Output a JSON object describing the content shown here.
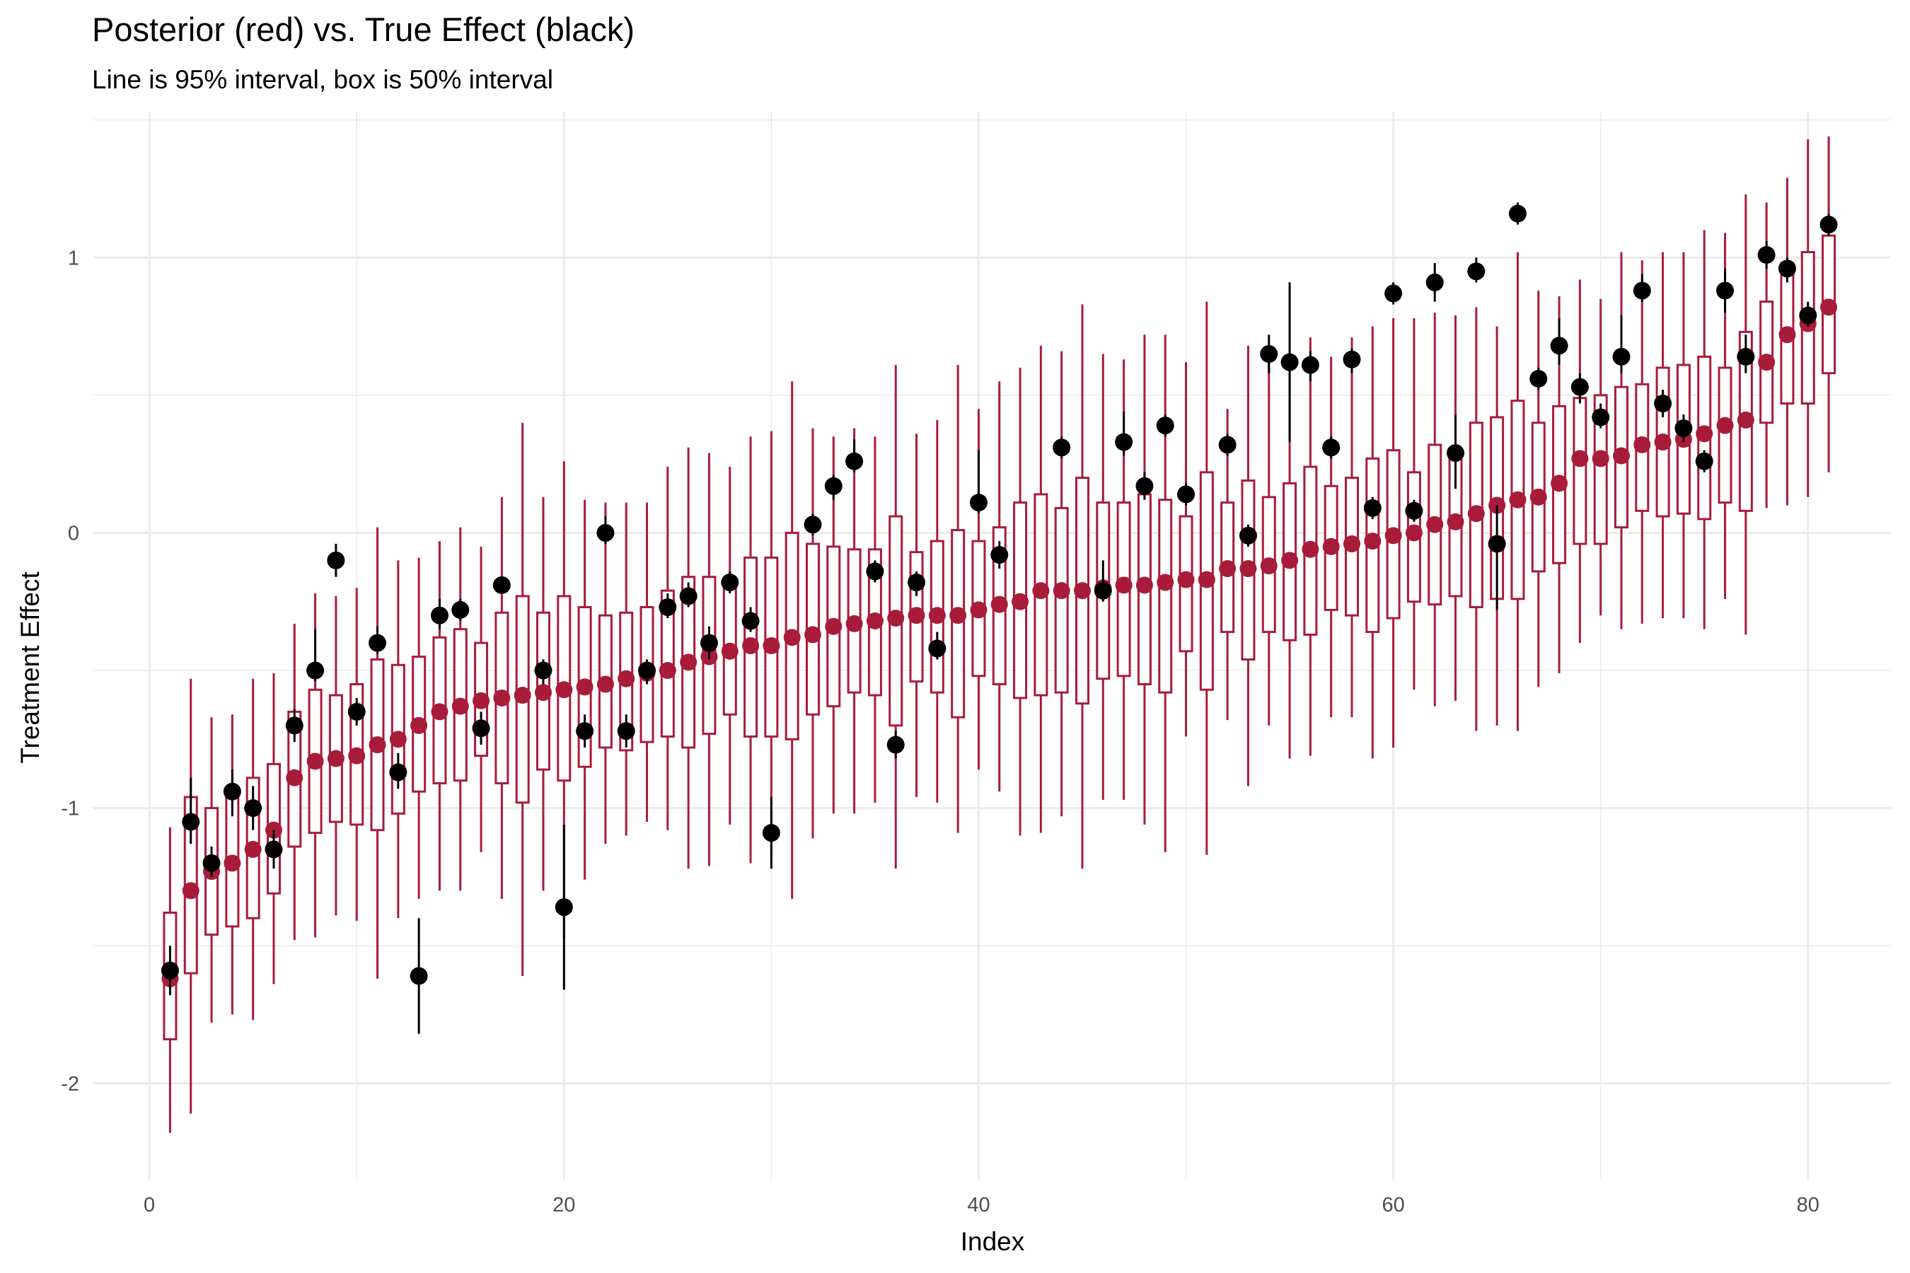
{
  "chart_data": {
    "type": "scatter",
    "title": "Posterior (red) vs. True Effect (black)",
    "subtitle": "Line is 95% interval, box is 50% interval",
    "xlabel": "Index",
    "ylabel": "Treatment Effect",
    "xlim": [
      -2.7,
      84
    ],
    "ylim": [
      -2.35,
      1.53
    ],
    "x_ticks": [
      0,
      20,
      40,
      60,
      80
    ],
    "y_ticks": [
      -2,
      -1,
      0,
      1
    ],
    "grid": true,
    "colors": {
      "posterior": "#A81C3A",
      "true_effect": "#000000",
      "grid": "#EBEBEB"
    },
    "series": [
      {
        "name": "Posterior",
        "index": [
          1,
          2,
          3,
          4,
          5,
          6,
          7,
          8,
          9,
          10,
          11,
          12,
          13,
          14,
          15,
          16,
          17,
          18,
          19,
          20,
          21,
          22,
          23,
          24,
          25,
          26,
          27,
          28,
          29,
          30,
          31,
          32,
          33,
          34,
          35,
          36,
          37,
          38,
          39,
          40,
          41,
          42,
          43,
          44,
          45,
          46,
          47,
          48,
          49,
          50,
          51,
          52,
          53,
          54,
          55,
          56,
          57,
          58,
          59,
          60,
          61,
          62,
          63,
          64,
          65,
          66,
          67,
          68,
          69,
          70,
          71,
          72,
          73,
          74,
          75,
          76,
          77,
          78,
          79,
          80,
          81
        ],
        "median": [
          -1.62,
          -1.3,
          -1.23,
          -1.2,
          -1.15,
          -1.08,
          -0.89,
          -0.83,
          -0.82,
          -0.81,
          -0.77,
          -0.75,
          -0.7,
          -0.65,
          -0.63,
          -0.61,
          -0.6,
          -0.59,
          -0.58,
          -0.57,
          -0.56,
          -0.55,
          -0.53,
          -0.51,
          -0.5,
          -0.47,
          -0.45,
          -0.43,
          -0.41,
          -0.41,
          -0.38,
          -0.37,
          -0.34,
          -0.33,
          -0.32,
          -0.31,
          -0.3,
          -0.3,
          -0.3,
          -0.28,
          -0.26,
          -0.25,
          -0.21,
          -0.21,
          -0.21,
          -0.2,
          -0.19,
          -0.19,
          -0.18,
          -0.17,
          -0.17,
          -0.13,
          -0.13,
          -0.12,
          -0.1,
          -0.06,
          -0.05,
          -0.04,
          -0.03,
          -0.01,
          0.0,
          0.03,
          0.04,
          0.07,
          0.1,
          0.12,
          0.13,
          0.18,
          0.27,
          0.27,
          0.28,
          0.32,
          0.33,
          0.34,
          0.36,
          0.39,
          0.41,
          0.62,
          0.72,
          0.76,
          0.82
        ],
        "q25": [
          -1.84,
          -1.6,
          -1.46,
          -1.43,
          -1.4,
          -1.31,
          -1.14,
          -1.09,
          -1.05,
          -1.06,
          -1.08,
          -1.02,
          -0.94,
          -0.91,
          -0.9,
          -0.81,
          -0.91,
          -0.98,
          -0.86,
          -0.9,
          -0.85,
          -0.78,
          -0.79,
          -0.76,
          -0.74,
          -0.78,
          -0.73,
          -0.66,
          -0.74,
          -0.74,
          -0.75,
          -0.66,
          -0.63,
          -0.58,
          -0.59,
          -0.7,
          -0.54,
          -0.58,
          -0.67,
          -0.52,
          -0.55,
          -0.6,
          -0.59,
          -0.58,
          -0.62,
          -0.53,
          -0.52,
          -0.55,
          -0.58,
          -0.43,
          -0.57,
          -0.36,
          -0.46,
          -0.36,
          -0.39,
          -0.37,
          -0.28,
          -0.3,
          -0.36,
          -0.31,
          -0.25,
          -0.26,
          -0.23,
          -0.27,
          -0.24,
          -0.24,
          -0.14,
          -0.11,
          -0.04,
          -0.04,
          0.02,
          0.08,
          0.06,
          0.07,
          0.05,
          0.11,
          0.08,
          0.4,
          0.47,
          0.47,
          0.58
        ],
        "q75": [
          -1.38,
          -0.96,
          -1.0,
          -0.96,
          -0.89,
          -0.84,
          -0.65,
          -0.57,
          -0.59,
          -0.55,
          -0.46,
          -0.48,
          -0.45,
          -0.38,
          -0.35,
          -0.4,
          -0.29,
          -0.23,
          -0.29,
          -0.23,
          -0.27,
          -0.3,
          -0.29,
          -0.27,
          -0.21,
          -0.16,
          -0.16,
          -0.2,
          -0.09,
          -0.09,
          0.0,
          -0.04,
          -0.05,
          -0.06,
          -0.06,
          0.06,
          -0.07,
          -0.03,
          0.01,
          -0.03,
          0.02,
          0.11,
          0.14,
          0.09,
          0.2,
          0.11,
          0.11,
          0.14,
          0.12,
          0.06,
          0.22,
          0.11,
          0.19,
          0.13,
          0.18,
          0.24,
          0.17,
          0.2,
          0.27,
          0.3,
          0.22,
          0.32,
          0.3,
          0.4,
          0.42,
          0.48,
          0.4,
          0.46,
          0.49,
          0.5,
          0.53,
          0.54,
          0.6,
          0.61,
          0.64,
          0.6,
          0.73,
          0.84,
          0.98,
          1.02,
          1.08
        ],
        "lo95": [
          -2.18,
          -2.11,
          -1.78,
          -1.75,
          -1.77,
          -1.64,
          -1.48,
          -1.47,
          -1.39,
          -1.41,
          -1.62,
          -1.4,
          -1.33,
          -1.3,
          -1.3,
          -1.16,
          -1.33,
          -1.61,
          -1.3,
          -1.47,
          -1.26,
          -1.13,
          -1.1,
          -1.05,
          -1.08,
          -1.22,
          -1.21,
          -1.06,
          -1.2,
          -1.17,
          -1.33,
          -1.11,
          -1.02,
          -1.02,
          -0.98,
          -1.22,
          -0.96,
          -0.98,
          -1.09,
          -0.86,
          -0.94,
          -1.1,
          -1.09,
          -1.03,
          -1.22,
          -0.97,
          -0.97,
          -1.06,
          -1.16,
          -0.74,
          -1.17,
          -0.68,
          -0.92,
          -0.7,
          -0.82,
          -0.81,
          -0.67,
          -0.67,
          -0.82,
          -0.78,
          -0.57,
          -0.63,
          -0.61,
          -0.72,
          -0.7,
          -0.72,
          -0.56,
          -0.51,
          -0.4,
          -0.3,
          -0.35,
          -0.33,
          -0.31,
          -0.31,
          -0.35,
          -0.24,
          -0.37,
          0.09,
          0.1,
          0.13,
          0.22
        ],
        "hi95": [
          -1.07,
          -0.53,
          -0.67,
          -0.66,
          -0.53,
          -0.51,
          -0.33,
          -0.22,
          -0.23,
          -0.2,
          0.02,
          -0.1,
          -0.09,
          -0.03,
          0.02,
          -0.05,
          0.13,
          0.4,
          0.13,
          0.26,
          0.12,
          0.11,
          0.11,
          0.11,
          0.24,
          0.31,
          0.29,
          0.24,
          0.35,
          0.37,
          0.55,
          0.38,
          0.35,
          0.38,
          0.35,
          0.61,
          0.36,
          0.41,
          0.61,
          0.45,
          0.55,
          0.6,
          0.68,
          0.66,
          0.83,
          0.65,
          0.63,
          0.72,
          0.72,
          0.62,
          0.84,
          0.45,
          0.68,
          0.62,
          0.66,
          0.71,
          0.64,
          0.71,
          0.75,
          0.78,
          0.78,
          0.8,
          0.79,
          0.82,
          0.75,
          1.02,
          0.88,
          0.86,
          0.92,
          0.85,
          1.02,
          0.99,
          1.02,
          1.02,
          1.1,
          1.09,
          1.23,
          1.2,
          1.29,
          1.43,
          1.44
        ]
      },
      {
        "name": "True Effect",
        "index": [
          1,
          2,
          3,
          4,
          5,
          6,
          7,
          8,
          9,
          10,
          11,
          12,
          13,
          14,
          15,
          16,
          17,
          18,
          19,
          20,
          21,
          22,
          23,
          24,
          25,
          26,
          27,
          28,
          29,
          30,
          31,
          32,
          33,
          34,
          35,
          36,
          37,
          38,
          39,
          40,
          41,
          42,
          43,
          44,
          45,
          46,
          47,
          48,
          49,
          50,
          51,
          52,
          53,
          54,
          55,
          56,
          57,
          58,
          59,
          60,
          61,
          62,
          63,
          64,
          65,
          66,
          67,
          68,
          69,
          70,
          71,
          72,
          73,
          74,
          75,
          76,
          77,
          78,
          79,
          80,
          81
        ],
        "value": [
          -1.59,
          -1.05,
          -1.2,
          -0.94,
          -1.0,
          -1.15,
          -0.7,
          -0.5,
          -0.1,
          -0.65,
          -0.4,
          -0.87,
          -1.61,
          -0.3,
          -0.28,
          -0.71,
          -0.19,
          null,
          -0.5,
          -1.36,
          -0.72,
          0.0,
          -0.72,
          -0.5,
          -0.27,
          -0.23,
          -0.4,
          -0.18,
          -0.32,
          -1.09,
          null,
          0.03,
          0.17,
          0.26,
          -0.14,
          -0.77,
          -0.18,
          -0.42,
          null,
          0.11,
          -0.08,
          null,
          null,
          0.31,
          null,
          -0.21,
          0.33,
          0.17,
          0.39,
          0.14,
          null,
          0.32,
          -0.01,
          0.65,
          0.62,
          0.61,
          0.31,
          0.63,
          0.09,
          0.87,
          0.08,
          0.91,
          0.29,
          0.95,
          -0.04,
          1.16,
          0.56,
          0.68,
          0.53,
          0.42,
          0.64,
          0.88,
          0.47,
          0.38,
          0.26,
          0.88,
          0.64,
          1.01,
          0.96,
          0.79,
          1.12
        ],
        "lo": [
          -1.68,
          -1.13,
          -1.25,
          -1.03,
          -1.08,
          -1.22,
          -0.76,
          -0.54,
          -0.16,
          -0.7,
          -0.44,
          -0.93,
          -1.82,
          -0.35,
          -0.32,
          -0.77,
          -0.22,
          null,
          -0.55,
          -1.66,
          -0.78,
          -0.04,
          -0.78,
          -0.55,
          -0.31,
          -0.27,
          -0.46,
          -0.22,
          -0.36,
          -1.22,
          null,
          -0.01,
          0.12,
          0.22,
          -0.18,
          -0.82,
          -0.23,
          -0.46,
          null,
          0.07,
          -0.13,
          null,
          null,
          0.27,
          null,
          -0.25,
          0.28,
          0.12,
          0.35,
          0.1,
          null,
          0.28,
          -0.05,
          0.58,
          0.33,
          0.55,
          0.27,
          0.58,
          0.05,
          0.83,
          0.04,
          0.84,
          0.16,
          0.91,
          -0.28,
          1.12,
          0.52,
          0.61,
          0.47,
          0.38,
          0.58,
          0.84,
          0.42,
          0.33,
          0.22,
          0.8,
          0.58,
          0.96,
          0.91,
          0.75,
          1.08
        ],
        "hi": [
          -1.5,
          -0.89,
          -1.14,
          -0.86,
          -0.92,
          -1.08,
          -0.64,
          -0.35,
          -0.04,
          -0.6,
          -0.34,
          -0.8,
          -1.4,
          -0.24,
          -0.24,
          -0.65,
          -0.16,
          null,
          -0.46,
          -1.06,
          -0.66,
          0.06,
          -0.66,
          -0.46,
          -0.22,
          -0.18,
          -0.34,
          -0.14,
          -0.27,
          -0.96,
          null,
          0.07,
          0.21,
          0.34,
          -0.1,
          -0.72,
          -0.14,
          -0.36,
          null,
          0.3,
          -0.03,
          null,
          null,
          0.35,
          null,
          -0.1,
          0.44,
          0.22,
          0.43,
          0.18,
          null,
          0.36,
          0.03,
          0.72,
          0.91,
          0.66,
          0.35,
          0.67,
          0.13,
          0.91,
          0.12,
          0.98,
          0.43,
          1.0,
          0.1,
          1.2,
          0.6,
          0.78,
          0.58,
          0.47,
          0.79,
          0.94,
          0.52,
          0.43,
          0.3,
          0.96,
          0.72,
          1.06,
          1.0,
          0.84,
          1.16
        ]
      }
    ]
  }
}
